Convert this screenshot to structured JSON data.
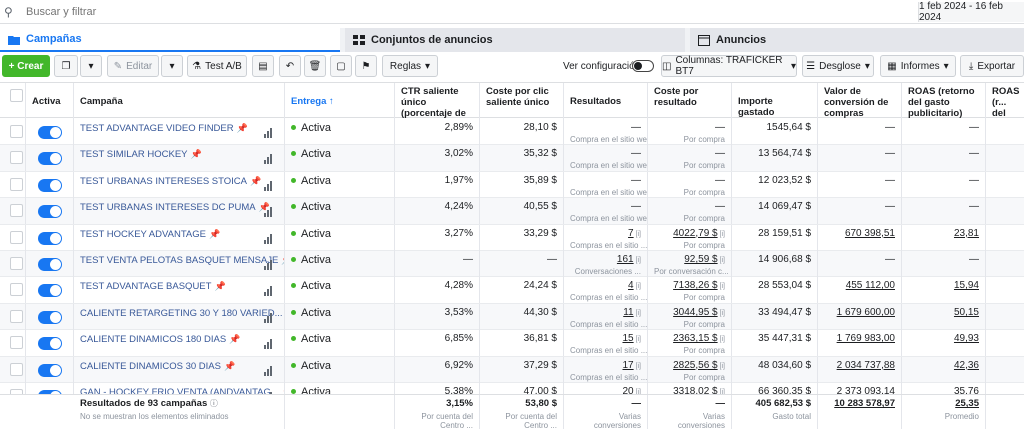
{
  "search": {
    "placeholder": "Buscar y filtrar",
    "date_range": "1 feb 2024 - 16 feb 2024"
  },
  "tabs": [
    {
      "label": "Campañas"
    },
    {
      "label": "Conjuntos de anuncios"
    },
    {
      "label": "Anuncios"
    }
  ],
  "toolbar": {
    "create": "+ Crear",
    "edit": "Editar",
    "ab_test": "Test A/B",
    "rules": "Reglas",
    "view_config": "Ver configuración",
    "columns": "Columnas: TRAFICKER BT7",
    "breakdown": "Desglose",
    "reports": "Informes",
    "export": "Exportar"
  },
  "columns": {
    "active": "Activa",
    "campaign": "Campaña",
    "delivery": "Entrega ↑",
    "ctr": "CTR saliente único (porcentaje de clics)",
    "cpc": "Coste por clic saliente único",
    "results": "Resultados",
    "cost_per_result": "Coste por resultado",
    "spent": "Importe gastado",
    "conv_value": "Valor de conversión de compras",
    "roas": "ROAS (retorno del gasto publicitario) de...",
    "roas2": "ROAS (r... del gas... publicita..."
  },
  "rows": [
    {
      "name": "TEST ADVANTAGE VIDEO FINDER",
      "status": "Activa",
      "ctr": "2,89%",
      "cpc": "28,10 $",
      "results": "—",
      "results_sub": "Compra en el sitio web",
      "cpr": "—",
      "cpr_sub": "Por compra",
      "spent": "1545,64 $",
      "conv": "—",
      "roas": "—"
    },
    {
      "name": "TEST SIMILAR HOCKEY",
      "status": "Activa",
      "ctr": "3,02%",
      "cpc": "35,32 $",
      "results": "—",
      "results_sub": "Compra en el sitio web",
      "cpr": "—",
      "cpr_sub": "Por compra",
      "spent": "13 564,74 $",
      "conv": "—",
      "roas": "—"
    },
    {
      "name": "TEST URBANAS INTERESES STOICA",
      "status": "Activa",
      "ctr": "1,97%",
      "cpc": "35,89 $",
      "results": "—",
      "results_sub": "Compra en el sitio web",
      "cpr": "—",
      "cpr_sub": "Por compra",
      "spent": "12 023,52 $",
      "conv": "—",
      "roas": "—"
    },
    {
      "name": "TEST URBANAS INTERESES DC PUMA",
      "status": "Activa",
      "ctr": "4,24%",
      "cpc": "40,55 $",
      "results": "—",
      "results_sub": "Compra en el sitio web",
      "cpr": "—",
      "cpr_sub": "Por compra",
      "spent": "14 069,47 $",
      "conv": "—",
      "roas": "—"
    },
    {
      "name": "TEST HOCKEY ADVANTAGE",
      "status": "Activa",
      "ctr": "3,27%",
      "cpc": "33,29 $",
      "results": "7",
      "results_sub": "Compras en el sitio ...",
      "cpr": "4022,79 $",
      "cpr_sub": "Por compra",
      "spent": "28 159,51 $",
      "conv": "670 398,51",
      "roas": "23,81"
    },
    {
      "name": "TEST VENTA PELOTAS BASQUET MENSAJE",
      "status": "Activa",
      "ctr": "—",
      "cpc": "—",
      "results": "161",
      "results_sub": "Conversaciones ...",
      "cpr": "92,59 $",
      "cpr_sub": "Por conversación c...",
      "spent": "14 906,68 $",
      "conv": "—",
      "roas": "—"
    },
    {
      "name": "TEST ADVANTAGE BASQUET",
      "status": "Activa",
      "ctr": "4,28%",
      "cpc": "24,24 $",
      "results": "4",
      "results_sub": "Compras en el sitio ...",
      "cpr": "7138,26 $",
      "cpr_sub": "Por compra",
      "spent": "28 553,04 $",
      "conv": "455 112,00",
      "roas": "15,94"
    },
    {
      "name": "CALIENTE RETARGETING 30 Y 180 VARIED...",
      "status": "Activa",
      "ctr": "3,53%",
      "cpc": "44,30 $",
      "results": "11",
      "results_sub": "Compras en el sitio ...",
      "cpr": "3044,95 $",
      "cpr_sub": "Por compra",
      "spent": "33 494,47 $",
      "conv": "1 679 600,00",
      "roas": "50,15"
    },
    {
      "name": "CALIENTE DINAMICOS 180 DIAS",
      "status": "Activa",
      "ctr": "6,85%",
      "cpc": "36,81 $",
      "results": "15",
      "results_sub": "Compras en el sitio ...",
      "cpr": "2363,15 $",
      "cpr_sub": "Por compra",
      "spent": "35 447,31 $",
      "conv": "1 769 983,00",
      "roas": "49,93"
    },
    {
      "name": "CALIENTE DINAMICOS 30 DIAS",
      "status": "Activa",
      "ctr": "6,92%",
      "cpc": "37,29 $",
      "results": "17",
      "results_sub": "Compras en el sitio ...",
      "cpr": "2825,56 $",
      "cpr_sub": "Por compra",
      "spent": "48 034,60 $",
      "conv": "2 034 737,88",
      "roas": "42,36"
    },
    {
      "name": "GAN - HOCKEY FRIO VENTA (ANDVANTAG...",
      "status": "Activa",
      "ctr": "5,38%",
      "cpc": "47,00 $",
      "results": "20",
      "results_sub": "",
      "cpr": "3318,02 $",
      "cpr_sub": "",
      "spent": "66 360,35 $",
      "conv": "2 373 093,14",
      "roas": "35,76"
    }
  ],
  "footer": {
    "title": "Resultados de 93 campañas",
    "note": "No se muestran los elementos eliminados",
    "ctr": "3,15%",
    "ctr_sub": "Por cuenta del Centro ...",
    "cpc": "53,80 $",
    "cpc_sub": "Por cuenta del Centro ...",
    "results": "—",
    "results_sub": "Varias conversiones",
    "cpr": "—",
    "cpr_sub": "Varias conversiones",
    "spent": "405 682,53 $",
    "spent_sub": "Gasto total",
    "conv": "10 283 578,97",
    "roas": "25,35",
    "roas_sub": "Promedio"
  }
}
